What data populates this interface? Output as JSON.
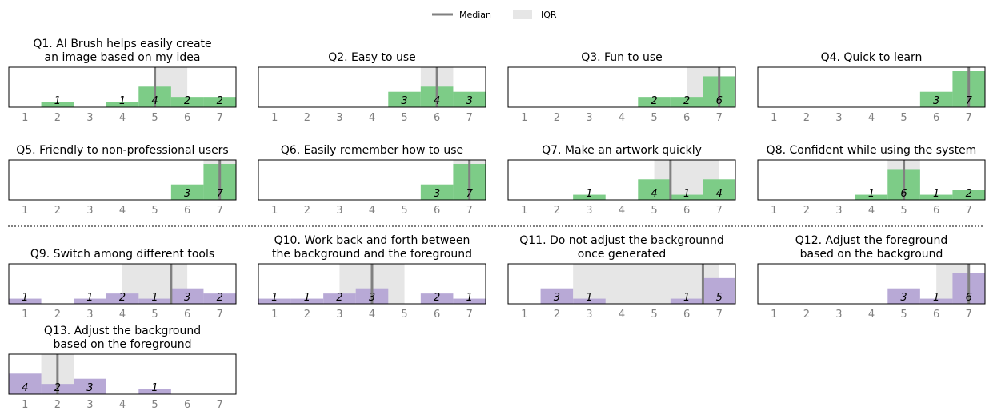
{
  "legend": {
    "median_label": "Median",
    "iqr_label": "IQR"
  },
  "colors": {
    "green": "#7dcc87",
    "purple": "#b8a9d6",
    "median": "#808080",
    "iqr": "#e6e6e6",
    "separator": "#000000"
  },
  "chart_data": [
    {
      "type": "bar",
      "title": [
        "Q1. AI Brush helps easily create",
        "an image based on my idea"
      ],
      "color": "green",
      "categories": [
        "1",
        "2",
        "3",
        "4",
        "5",
        "6",
        "7"
      ],
      "values": [
        0,
        1,
        0,
        1,
        4,
        2,
        2
      ],
      "median": 5,
      "iqr": [
        5,
        6
      ],
      "ylim": [
        0,
        7
      ]
    },
    {
      "type": "bar",
      "title": [
        "Q2. Easy to use"
      ],
      "color": "green",
      "categories": [
        "1",
        "2",
        "3",
        "4",
        "5",
        "6",
        "7"
      ],
      "values": [
        0,
        0,
        0,
        0,
        3,
        4,
        3
      ],
      "median": 6,
      "iqr": [
        5.5,
        6.5
      ],
      "ylim": [
        0,
        7
      ]
    },
    {
      "type": "bar",
      "title": [
        "Q3. Fun to use"
      ],
      "color": "green",
      "categories": [
        "1",
        "2",
        "3",
        "4",
        "5",
        "6",
        "7"
      ],
      "values": [
        0,
        0,
        0,
        0,
        2,
        2,
        6
      ],
      "median": 7,
      "iqr": [
        6,
        7
      ],
      "ylim": [
        0,
        7
      ]
    },
    {
      "type": "bar",
      "title": [
        "Q4. Quick to learn"
      ],
      "color": "green",
      "categories": [
        "1",
        "2",
        "3",
        "4",
        "5",
        "6",
        "7"
      ],
      "values": [
        0,
        0,
        0,
        0,
        0,
        3,
        7
      ],
      "median": 7,
      "iqr": [
        7,
        7
      ],
      "ylim": [
        0,
        7
      ]
    },
    {
      "type": "bar",
      "title": [
        "Q5. Friendly to non-professional users"
      ],
      "color": "green",
      "categories": [
        "1",
        "2",
        "3",
        "4",
        "5",
        "6",
        "7"
      ],
      "values": [
        0,
        0,
        0,
        0,
        0,
        3,
        7
      ],
      "median": 7,
      "iqr": [
        6.5,
        7.5
      ],
      "ylim": [
        0,
        7
      ]
    },
    {
      "type": "bar",
      "title": [
        "Q6. Easily remember how to use"
      ],
      "color": "green",
      "categories": [
        "1",
        "2",
        "3",
        "4",
        "5",
        "6",
        "7"
      ],
      "values": [
        0,
        0,
        0,
        0,
        0,
        3,
        7
      ],
      "median": 7,
      "iqr": [
        6.5,
        7.5
      ],
      "ylim": [
        0,
        7
      ]
    },
    {
      "type": "bar",
      "title": [
        "Q7. Make an artwork quickly"
      ],
      "color": "green",
      "categories": [
        "1",
        "2",
        "3",
        "4",
        "5",
        "6",
        "7"
      ],
      "values": [
        0,
        0,
        1,
        0,
        4,
        1,
        4
      ],
      "median": 5.5,
      "iqr": [
        5,
        7
      ],
      "ylim": [
        0,
        7
      ]
    },
    {
      "type": "bar",
      "title": [
        "Q8. Confident while using the system"
      ],
      "color": "green",
      "categories": [
        "1",
        "2",
        "3",
        "4",
        "5",
        "6",
        "7"
      ],
      "values": [
        0,
        0,
        0,
        1,
        6,
        1,
        2
      ],
      "median": 5,
      "iqr": [
        4.5,
        5.5
      ],
      "ylim": [
        0,
        7
      ]
    },
    {
      "type": "bar",
      "title": [
        "Q9. Switch among different tools"
      ],
      "color": "purple",
      "categories": [
        "1",
        "2",
        "3",
        "4",
        "5",
        "6",
        "7"
      ],
      "values": [
        1,
        0,
        1,
        2,
        1,
        3,
        2
      ],
      "median": 5.5,
      "iqr": [
        4,
        6
      ],
      "ylim": [
        0,
        7
      ]
    },
    {
      "type": "bar",
      "title": [
        "Q10. Work back and forth between",
        "the background and the foreground"
      ],
      "color": "purple",
      "categories": [
        "1",
        "2",
        "3",
        "4",
        "5",
        "6",
        "7"
      ],
      "values": [
        1,
        1,
        2,
        3,
        0,
        2,
        1
      ],
      "median": 4,
      "iqr": [
        3,
        5
      ],
      "ylim": [
        0,
        7
      ]
    },
    {
      "type": "bar",
      "title": [
        "Q11. Do not adjust the  backgrounnd",
        "once generated"
      ],
      "color": "purple",
      "categories": [
        "1",
        "2",
        "3",
        "4",
        "5",
        "6",
        "7"
      ],
      "values": [
        0,
        3,
        1,
        0,
        0,
        1,
        5
      ],
      "median": 6.5,
      "iqr": [
        2.5,
        7
      ],
      "ylim": [
        0,
        7
      ]
    },
    {
      "type": "bar",
      "title": [
        "Q12. Adjust the foreground",
        "based on the background"
      ],
      "color": "purple",
      "categories": [
        "1",
        "2",
        "3",
        "4",
        "5",
        "6",
        "7"
      ],
      "values": [
        0,
        0,
        0,
        0,
        3,
        1,
        6
      ],
      "median": 7,
      "iqr": [
        6,
        7
      ],
      "ylim": [
        0,
        7
      ]
    },
    {
      "type": "bar",
      "title": [
        "Q13. Adjust the background",
        "based on the foreground"
      ],
      "color": "purple",
      "categories": [
        "1",
        "2",
        "3",
        "4",
        "5",
        "6",
        "7"
      ],
      "values": [
        4,
        2,
        3,
        0,
        1,
        0,
        0
      ],
      "median": 2,
      "iqr": [
        1.5,
        2.5
      ],
      "ylim": [
        0,
        7
      ]
    }
  ]
}
